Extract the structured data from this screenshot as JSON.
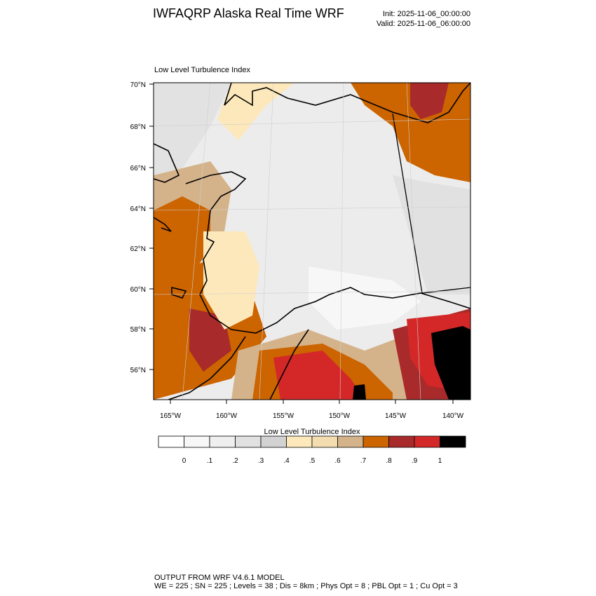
{
  "header": {
    "title": "IWFAQRP Alaska Real Time WRF",
    "init": "Init: 2025-11-06_00:00:00",
    "valid": "Valid: 2025-11-06_06:00:00"
  },
  "map": {
    "title": "Low Level Turbulence Index",
    "lat_labels": [
      "70°N",
      "68°N",
      "66°N",
      "64°N",
      "62°N",
      "60°N",
      "58°N",
      "56°N"
    ],
    "lon_labels": [
      "165°W",
      "160°W",
      "155°W",
      "150°W",
      "145°W",
      "140°W"
    ]
  },
  "colorbar": {
    "title": "Low Level Turbulence Index",
    "colors": [
      "#ffffff",
      "#f7f7f7",
      "#efefef",
      "#e1e1e1",
      "#d2d2d2",
      "#fde8bb",
      "#f3dcb0",
      "#d5b38a",
      "#cc6400",
      "#a82a2a",
      "#d42828",
      "#000000"
    ],
    "labels": [
      "0",
      ".1",
      ".2",
      ".3",
      ".4",
      ".5",
      ".6",
      ".7",
      ".8",
      ".9",
      "1"
    ]
  },
  "footer": {
    "line1": "OUTPUT FROM WRF V4.6.1 MODEL",
    "line2": "WE = 225 ; SN = 225 ; Levels = 38 ; Dis = 8km ; Phys Opt = 8 ; PBL Opt = 1 ; Cu Opt = 3"
  }
}
